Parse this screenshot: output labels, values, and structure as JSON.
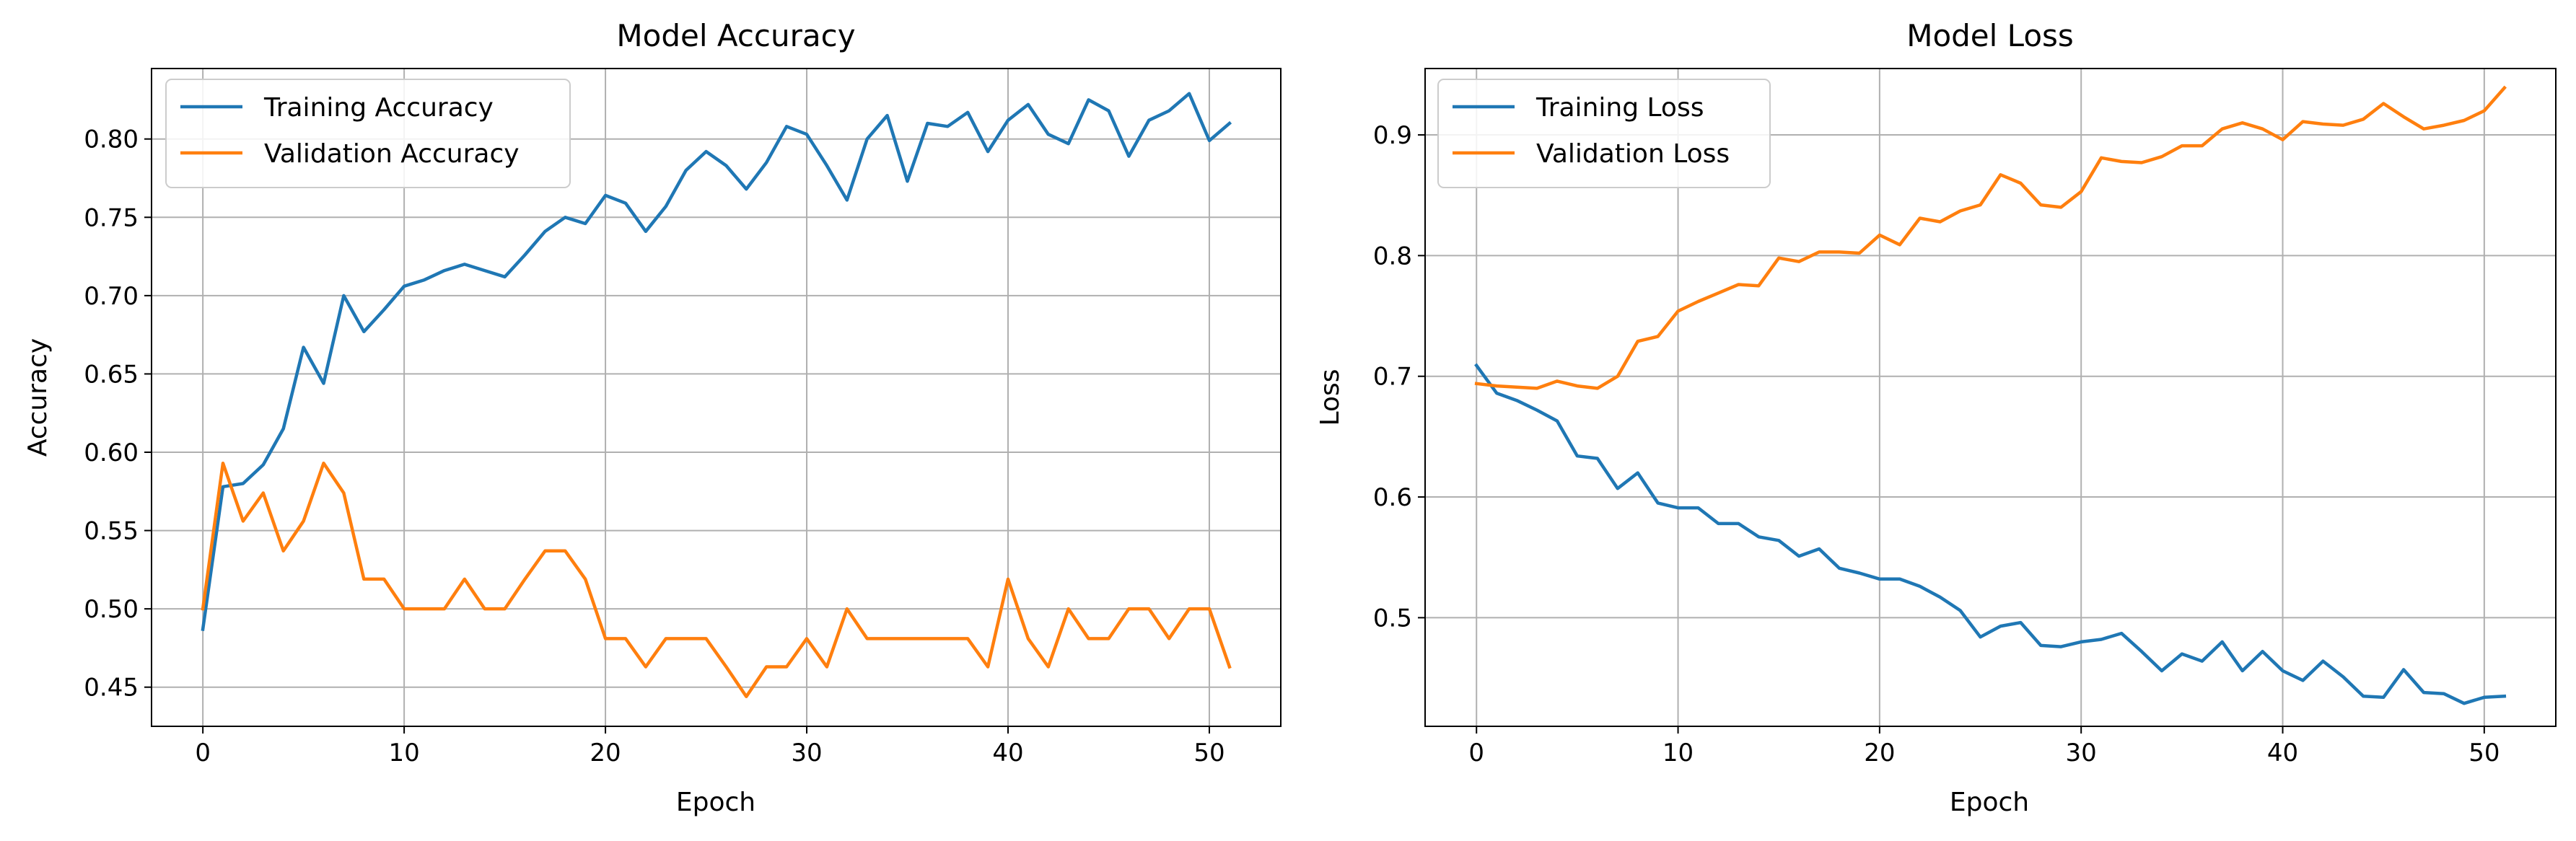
{
  "chart_data": [
    {
      "type": "line",
      "title": "Model Accuracy",
      "xlabel": "Epoch",
      "ylabel": "Accuracy",
      "xlim": [
        -2.55,
        53.55
      ],
      "ylim": [
        0.425,
        0.845
      ],
      "xticks": [
        0,
        10,
        20,
        30,
        40,
        50
      ],
      "yticks": [
        0.45,
        0.5,
        0.55,
        0.6,
        0.65,
        0.7,
        0.75,
        0.8
      ],
      "ytick_labels": [
        "0.45",
        "0.50",
        "0.55",
        "0.60",
        "0.65",
        "0.70",
        "0.75",
        "0.80"
      ],
      "grid": true,
      "legend_position": "upper-left",
      "x": [
        0,
        1,
        2,
        3,
        4,
        5,
        6,
        7,
        8,
        9,
        10,
        11,
        12,
        13,
        14,
        15,
        16,
        17,
        18,
        19,
        20,
        21,
        22,
        23,
        24,
        25,
        26,
        27,
        28,
        29,
        30,
        31,
        32,
        33,
        34,
        35,
        36,
        37,
        38,
        39,
        40,
        41,
        42,
        43,
        44,
        45,
        46,
        47,
        48,
        49,
        50,
        51
      ],
      "series": [
        {
          "name": "Training Accuracy",
          "color": "#1f77b4",
          "values": [
            0.487,
            0.578,
            0.58,
            0.592,
            0.615,
            0.667,
            0.644,
            0.7,
            0.677,
            0.691,
            0.706,
            0.71,
            0.716,
            0.72,
            0.716,
            0.712,
            0.726,
            0.741,
            0.75,
            0.746,
            0.764,
            0.759,
            0.741,
            0.757,
            0.78,
            0.792,
            0.783,
            0.768,
            0.785,
            0.808,
            0.803,
            0.783,
            0.761,
            0.8,
            0.815,
            0.773,
            0.81,
            0.808,
            0.817,
            0.792,
            0.812,
            0.822,
            0.803,
            0.797,
            0.825,
            0.818,
            0.789,
            0.812,
            0.818,
            0.829,
            0.799,
            0.81
          ]
        },
        {
          "name": "Validation Accuracy",
          "color": "#ff7f0e",
          "values": [
            0.5,
            0.593,
            0.556,
            0.574,
            0.537,
            0.556,
            0.593,
            0.574,
            0.519,
            0.519,
            0.5,
            0.5,
            0.5,
            0.519,
            0.5,
            0.5,
            0.519,
            0.537,
            0.537,
            0.519,
            0.481,
            0.481,
            0.463,
            0.481,
            0.481,
            0.481,
            0.463,
            0.444,
            0.463,
            0.463,
            0.481,
            0.463,
            0.5,
            0.481,
            0.481,
            0.481,
            0.481,
            0.481,
            0.481,
            0.463,
            0.519,
            0.481,
            0.463,
            0.5,
            0.481,
            0.481,
            0.5,
            0.5,
            0.481,
            0.5,
            0.5,
            0.463
          ]
        }
      ]
    },
    {
      "type": "line",
      "title": "Model Loss",
      "xlabel": "Epoch",
      "ylabel": "Loss",
      "xlim": [
        -2.55,
        53.55
      ],
      "ylim": [
        0.41,
        0.955
      ],
      "xticks": [
        0,
        10,
        20,
        30,
        40,
        50
      ],
      "yticks": [
        0.5,
        0.6,
        0.7,
        0.8,
        0.9
      ],
      "ytick_labels": [
        "0.5",
        "0.6",
        "0.7",
        "0.8",
        "0.9"
      ],
      "grid": true,
      "legend_position": "upper-left",
      "x": [
        0,
        1,
        2,
        3,
        4,
        5,
        6,
        7,
        8,
        9,
        10,
        11,
        12,
        13,
        14,
        15,
        16,
        17,
        18,
        19,
        20,
        21,
        22,
        23,
        24,
        25,
        26,
        27,
        28,
        29,
        30,
        31,
        32,
        33,
        34,
        35,
        36,
        37,
        38,
        39,
        40,
        41,
        42,
        43,
        44,
        45,
        46,
        47,
        48,
        49,
        50,
        51
      ],
      "series": [
        {
          "name": "Training Loss",
          "color": "#1f77b4",
          "values": [
            0.709,
            0.686,
            0.68,
            0.672,
            0.663,
            0.634,
            0.632,
            0.607,
            0.62,
            0.595,
            0.591,
            0.591,
            0.578,
            0.578,
            0.567,
            0.564,
            0.551,
            0.557,
            0.541,
            0.537,
            0.532,
            0.532,
            0.526,
            0.517,
            0.506,
            0.484,
            0.493,
            0.496,
            0.477,
            0.476,
            0.48,
            0.482,
            0.487,
            0.472,
            0.456,
            0.47,
            0.464,
            0.48,
            0.456,
            0.472,
            0.456,
            0.448,
            0.464,
            0.451,
            0.435,
            0.434,
            0.457,
            0.438,
            0.437,
            0.429,
            0.434,
            0.435
          ]
        },
        {
          "name": "Validation Loss",
          "color": "#ff7f0e",
          "values": [
            0.694,
            0.692,
            0.691,
            0.69,
            0.696,
            0.692,
            0.69,
            0.7,
            0.729,
            0.733,
            0.754,
            0.762,
            0.769,
            0.776,
            0.775,
            0.798,
            0.795,
            0.803,
            0.803,
            0.802,
            0.817,
            0.809,
            0.831,
            0.828,
            0.837,
            0.842,
            0.867,
            0.86,
            0.842,
            0.84,
            0.853,
            0.881,
            0.878,
            0.877,
            0.882,
            0.891,
            0.891,
            0.905,
            0.91,
            0.905,
            0.896,
            0.911,
            0.909,
            0.908,
            0.913,
            0.926,
            0.915,
            0.905,
            0.908,
            0.912,
            0.92,
            0.939
          ]
        }
      ]
    }
  ]
}
